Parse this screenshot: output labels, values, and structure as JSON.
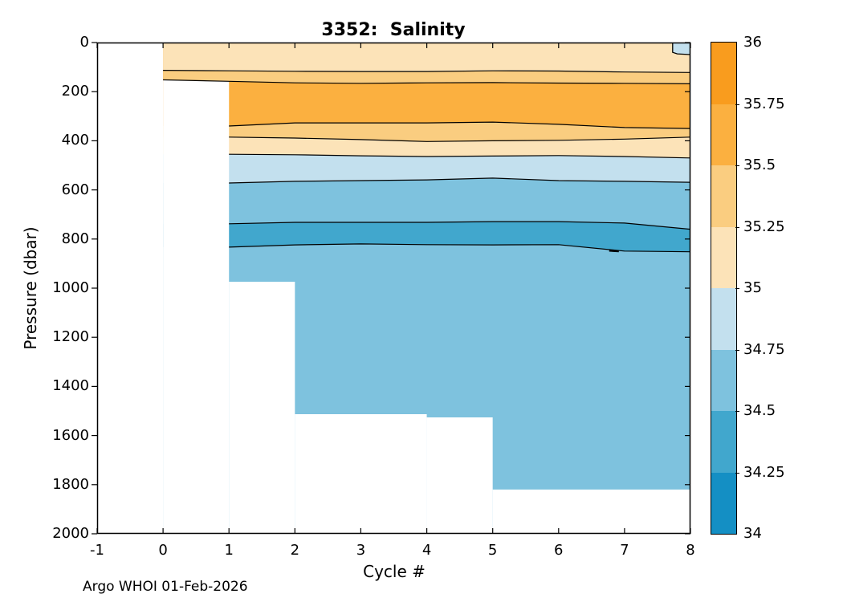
{
  "page": {
    "background": "#FFFFFF"
  },
  "header": {
    "title": "3352:  Salinity"
  },
  "axes": {
    "xlabel": "Cycle #",
    "ylabel": "Pressure (dbar)",
    "xtick_labels": [
      "-1",
      "0",
      "1",
      "2",
      "3",
      "4",
      "5",
      "6",
      "7",
      "8"
    ],
    "ytick_labels": [
      "0",
      "200",
      "400",
      "600",
      "800",
      "1000",
      "1200",
      "1400",
      "1600",
      "1800",
      "2000"
    ]
  },
  "footer": {
    "annotation": "Argo WHOI 01-Feb-2026"
  },
  "colorbar": {
    "tick_labels_top_to_bottom": [
      "36",
      "35.75",
      "35.5",
      "35.25",
      "35",
      "34.75",
      "34.5",
      "34.25",
      "34"
    ],
    "band_colors_bottom_to_top": [
      "#148FC4",
      "#41A7CD",
      "#7EC2DE",
      "#C3E0EE",
      "#FCE3B8",
      "#FACD80",
      "#FBB040",
      "#F99C1E"
    ]
  },
  "chart_data": {
    "type": "filled_contour",
    "title": "3352:  Salinity",
    "xlabel": "Cycle #",
    "ylabel": "Pressure (dbar)",
    "xlim": [
      -1,
      8
    ],
    "ylim": [
      0,
      2000
    ],
    "y_axis_inverted": true,
    "xticks": [
      -1,
      0,
      1,
      2,
      3,
      4,
      5,
      6,
      7,
      8
    ],
    "yticks": [
      0,
      200,
      400,
      600,
      800,
      1000,
      1200,
      1400,
      1600,
      1800,
      2000
    ],
    "grid": false,
    "legend_position": "colorbar-right",
    "contour_levels": [
      34,
      34.25,
      34.5,
      34.75,
      35,
      35.25,
      35.5,
      35.75,
      36
    ],
    "band_colors_bottom_to_top": [
      "#148FC4",
      "#41A7CD",
      "#7EC2DE",
      "#C3E0EE",
      "#FCE3B8",
      "#FACD80",
      "#FBB040",
      "#F99C1E"
    ],
    "line_color": "#000000",
    "cycles": [
      0,
      1,
      2,
      3,
      4,
      5,
      6,
      7,
      8
    ],
    "boundaries": {
      "s3525_upper": {
        "level": 35.25,
        "start_cycle": 0,
        "pressures": [
          113,
          115,
          117,
          118,
          118,
          115,
          116,
          120,
          122
        ]
      },
      "s355_upper": {
        "level": 35.5,
        "start_cycle": 0,
        "pressures": [
          152,
          158,
          164,
          166,
          164,
          163,
          165,
          166,
          168
        ]
      },
      "s355_lower": {
        "level": 35.5,
        "start_cycle": 1,
        "pressures": [
          340,
          327,
          327,
          327,
          324,
          333,
          346,
          350
        ]
      },
      "s3525_lower": {
        "level": 35.25,
        "start_cycle": 1,
        "pressures": [
          385,
          389,
          395,
          403,
          400,
          398,
          393,
          385
        ]
      },
      "s35": {
        "level": 35.0,
        "start_cycle": 1,
        "pressures": [
          455,
          457,
          461,
          464,
          462,
          460,
          464,
          470
        ]
      },
      "s3475": {
        "level": 34.75,
        "start_cycle": 1,
        "pressures": [
          572,
          565,
          562,
          559,
          552,
          562,
          565,
          569
        ]
      },
      "s345_upper": {
        "level": 34.5,
        "start_cycle": 1,
        "pressures": [
          738,
          732,
          732,
          732,
          729,
          729,
          735,
          760
        ]
      },
      "s345_lower": {
        "level": 34.5,
        "start_cycle": 1,
        "pressures": [
          833,
          824,
          820,
          823,
          824,
          823,
          849,
          852
        ]
      }
    },
    "fill_layers_paint_order": [
      {
        "salinity_band": "34.5-34.75",
        "color": "#7EC2DE",
        "above_boundary": null
      },
      {
        "salinity_band": "34.25-34.5",
        "color": "#41A7CD",
        "above_boundary": "s345_lower"
      },
      {
        "salinity_band": "34.5-34.75",
        "color": "#7EC2DE",
        "above_boundary": "s345_upper"
      },
      {
        "salinity_band": "34.75-35",
        "color": "#C3E0EE",
        "above_boundary": "s3475"
      },
      {
        "salinity_band": "35-35.25",
        "color": "#FCE3B8",
        "above_boundary": "s35"
      },
      {
        "salinity_band": "35.25-35.5",
        "color": "#FACD80",
        "above_boundary": "s3525_lower"
      },
      {
        "salinity_band": "35.5-35.75",
        "color": "#FBB040",
        "above_boundary": "s355_lower"
      },
      {
        "salinity_band": "35.25-35.5",
        "color": "#FACD80",
        "above_boundary": "s355_upper"
      },
      {
        "salinity_band": "35-35.25",
        "color": "#FCE3B8",
        "above_boundary": "s3525_upper"
      }
    ],
    "contour_line_boundaries": [
      "s3525_upper",
      "s355_upper",
      "s355_lower",
      "s3525_lower",
      "s35",
      "s3475",
      "s345_upper",
      "s345_lower"
    ],
    "coverage_masks": [
      {
        "x_from": 0,
        "x_to": 1,
        "follow_boundary": "s355_upper"
      },
      {
        "x_from": 1,
        "x_to": 2,
        "top_pressure": 974
      },
      {
        "x_from": 2,
        "x_to": 4,
        "top_pressure": 1513
      },
      {
        "x_from": 4,
        "x_to": 5,
        "top_pressure": 1526
      },
      {
        "x_from": 5,
        "x_to": 8,
        "top_pressure": 1820
      }
    ],
    "profile_max_pressure_by_cycle_range": [
      {
        "cycles": "0-1",
        "max_pressure": 160
      },
      {
        "cycles": "1-2",
        "max_pressure": 974
      },
      {
        "cycles": "2-4",
        "max_pressure": 1513
      },
      {
        "cycles": "4-5",
        "max_pressure": 1526
      },
      {
        "cycles": "5-8",
        "max_pressure": 1820
      }
    ],
    "surface_fresh_patch": {
      "salinity_band": "34.75-35",
      "color": "#C3E0EE",
      "points_cycle_pressure": [
        [
          7.73,
          0
        ],
        [
          7.73,
          40
        ],
        [
          7.8,
          46
        ],
        [
          8,
          49
        ],
        [
          8,
          0
        ]
      ]
    },
    "salinity_min_blob": {
      "cycle": 6.84,
      "pressure": 847
    },
    "annotation": "Argo WHOI 01-Feb-2026"
  }
}
